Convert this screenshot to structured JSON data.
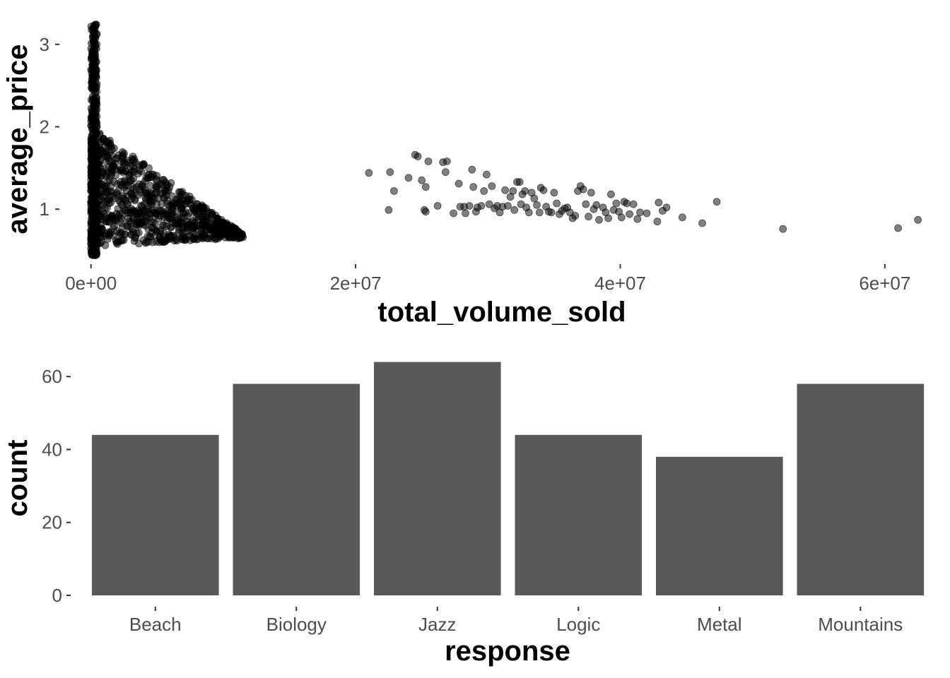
{
  "chart_data": [
    {
      "type": "scatter",
      "xlabel": "total_volume_sold",
      "ylabel": "average_price",
      "xlim": [
        -1000000,
        63000000
      ],
      "ylim": [
        0.35,
        3.35
      ],
      "xticks": [
        0,
        20000000,
        40000000,
        60000000
      ],
      "xtick_labels": [
        "0e+00",
        "2e+07",
        "4e+07",
        "6e+07"
      ],
      "yticks": [
        1,
        2,
        3
      ],
      "ytick_labels": [
        "1",
        "2",
        "3"
      ],
      "grid": false,
      "point_color": "#000000",
      "point_opacity": 0.5,
      "dense_cluster": {
        "description_of_region": "thousands of overlapping points near x=0",
        "x_range": [
          0,
          11500000
        ],
        "y_range": [
          0.44,
          3.25
        ]
      },
      "points": [
        [
          21000000,
          1.44
        ],
        [
          22600000,
          1.45
        ],
        [
          22500000,
          0.99
        ],
        [
          22900000,
          1.22
        ],
        [
          24000000,
          1.38
        ],
        [
          24500000,
          1.66
        ],
        [
          24700000,
          1.64
        ],
        [
          25000000,
          1.35
        ],
        [
          25300000,
          1.27
        ],
        [
          25200000,
          0.99
        ],
        [
          25300000,
          0.97
        ],
        [
          25500000,
          1.58
        ],
        [
          26200000,
          1.04
        ],
        [
          26600000,
          1.57
        ],
        [
          26900000,
          1.58
        ],
        [
          26800000,
          1.45
        ],
        [
          27400000,
          0.95
        ],
        [
          27800000,
          1.31
        ],
        [
          27900000,
          1.03
        ],
        [
          28200000,
          1.03
        ],
        [
          28300000,
          0.95
        ],
        [
          28600000,
          1.04
        ],
        [
          28800000,
          1.48
        ],
        [
          28900000,
          1.27
        ],
        [
          29100000,
          0.97
        ],
        [
          29200000,
          1.02
        ],
        [
          29500000,
          1.04
        ],
        [
          29700000,
          1.22
        ],
        [
          29900000,
          1.42
        ],
        [
          30100000,
          1.06
        ],
        [
          30300000,
          1.28
        ],
        [
          30500000,
          1.01
        ],
        [
          30700000,
          1.04
        ],
        [
          30900000,
          0.96
        ],
        [
          31100000,
          1.03
        ],
        [
          31300000,
          1.23
        ],
        [
          31500000,
          1.04
        ],
        [
          31700000,
          1.15
        ],
        [
          31900000,
          1.22
        ],
        [
          32000000,
          0.99
        ],
        [
          32200000,
          1.33
        ],
        [
          32400000,
          1.33
        ],
        [
          32500000,
          1.06
        ],
        [
          32600000,
          1.18
        ],
        [
          32800000,
          1.22
        ],
        [
          32900000,
          1.02
        ],
        [
          33100000,
          0.96
        ],
        [
          33300000,
          1.2
        ],
        [
          33500000,
          1.13
        ],
        [
          33700000,
          1.05
        ],
        [
          33900000,
          0.96
        ],
        [
          34000000,
          1.26
        ],
        [
          34200000,
          1.23
        ],
        [
          34400000,
          1.03
        ],
        [
          34600000,
          0.97
        ],
        [
          34800000,
          0.96
        ],
        [
          35000000,
          1.2
        ],
        [
          35200000,
          1.07
        ],
        [
          35400000,
          0.94
        ],
        [
          35600000,
          0.98
        ],
        [
          35800000,
          1.01
        ],
        [
          36000000,
          1.02
        ],
        [
          36200000,
          0.96
        ],
        [
          36400000,
          0.89
        ],
        [
          36600000,
          0.92
        ],
        [
          36800000,
          1.22
        ],
        [
          37000000,
          1.28
        ],
        [
          37200000,
          1.24
        ],
        [
          37400000,
          1.06
        ],
        [
          37600000,
          0.91
        ],
        [
          37800000,
          1.2
        ],
        [
          38000000,
          1.0
        ],
        [
          38200000,
          1.05
        ],
        [
          38400000,
          0.87
        ],
        [
          38700000,
          1.02
        ],
        [
          38900000,
          0.96
        ],
        [
          39100000,
          0.89
        ],
        [
          39300000,
          1.18
        ],
        [
          39500000,
          0.99
        ],
        [
          39700000,
          1.07
        ],
        [
          39900000,
          0.97
        ],
        [
          40100000,
          0.9
        ],
        [
          40300000,
          1.09
        ],
        [
          40500000,
          1.07
        ],
        [
          40700000,
          0.94
        ],
        [
          41000000,
          1.06
        ],
        [
          41300000,
          0.88
        ],
        [
          41500000,
          0.96
        ],
        [
          42000000,
          0.95
        ],
        [
          42800000,
          0.85
        ],
        [
          42900000,
          1.08
        ],
        [
          43200000,
          0.98
        ],
        [
          43500000,
          1.02
        ],
        [
          44700000,
          0.9
        ],
        [
          46200000,
          0.83
        ],
        [
          47300000,
          1.09
        ],
        [
          52300000,
          0.76
        ],
        [
          61000000,
          0.77
        ],
        [
          62500000,
          0.87
        ]
      ]
    },
    {
      "type": "bar",
      "xlabel": "response",
      "ylabel": "count",
      "categories": [
        "Beach",
        "Biology",
        "Jazz",
        "Logic",
        "Metal",
        "Mountains"
      ],
      "values": [
        44,
        58,
        64,
        44,
        38,
        58
      ],
      "ylim": [
        0,
        67.2
      ],
      "yticks": [
        0,
        20,
        40,
        60
      ],
      "ytick_labels": [
        "0",
        "20",
        "40",
        "60"
      ],
      "grid": false,
      "bar_color": "#595959"
    }
  ]
}
